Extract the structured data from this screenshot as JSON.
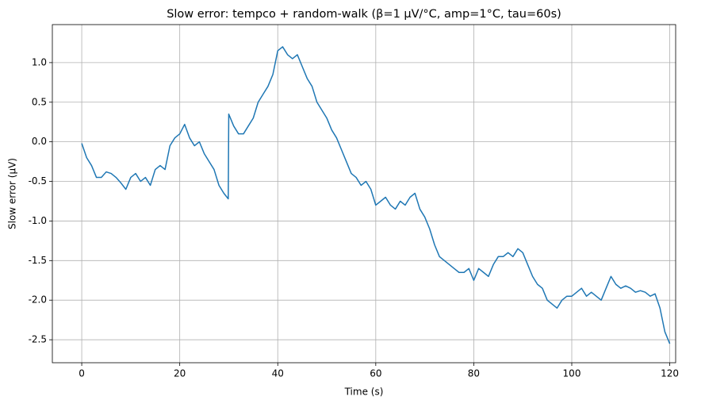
{
  "chart_data": {
    "type": "line",
    "title": "Slow error: tempco + random-walk (β=1 µV/°C, amp=1°C, tau=60s)",
    "x_label": "Time (s)",
    "y_label": "Slow error (µV)",
    "x": [
      0,
      1,
      2,
      3,
      4,
      5,
      6,
      7,
      8,
      9,
      10,
      11,
      12,
      13,
      14,
      15,
      16,
      17,
      18,
      19,
      20,
      21,
      22,
      23,
      24,
      25,
      26,
      27,
      28,
      29,
      29.9,
      30,
      31,
      32,
      33,
      34,
      35,
      36,
      37,
      38,
      39,
      40,
      41,
      42,
      43,
      44,
      45,
      46,
      47,
      48,
      49,
      50,
      51,
      52,
      53,
      54,
      55,
      56,
      57,
      58,
      59,
      60,
      61,
      62,
      63,
      64,
      65,
      66,
      67,
      68,
      69,
      70,
      71,
      72,
      73,
      74,
      75,
      76,
      77,
      78,
      79,
      80,
      81,
      82,
      83,
      84,
      85,
      86,
      87,
      88,
      89,
      90,
      91,
      92,
      93,
      94,
      95,
      96,
      97,
      98,
      99,
      100,
      101,
      102,
      103,
      104,
      105,
      106,
      107,
      108,
      109,
      110,
      111,
      112,
      113,
      114,
      115,
      116,
      117,
      118,
      119,
      120
    ],
    "series": [
      {
        "name": "Slow error",
        "color": "#1f77b4",
        "values": [
          -0.02,
          -0.2,
          -0.3,
          -0.45,
          -0.45,
          -0.38,
          -0.4,
          -0.45,
          -0.52,
          -0.6,
          -0.45,
          -0.4,
          -0.5,
          -0.45,
          -0.55,
          -0.35,
          -0.3,
          -0.35,
          -0.05,
          0.05,
          0.1,
          0.22,
          0.05,
          -0.05,
          0.0,
          -0.15,
          -0.25,
          -0.35,
          -0.55,
          -0.65,
          -0.72,
          0.35,
          0.2,
          0.1,
          0.1,
          0.2,
          0.3,
          0.5,
          0.6,
          0.7,
          0.85,
          1.15,
          1.2,
          1.1,
          1.05,
          1.1,
          0.95,
          0.8,
          0.7,
          0.5,
          0.4,
          0.3,
          0.15,
          0.05,
          -0.1,
          -0.25,
          -0.4,
          -0.45,
          -0.55,
          -0.5,
          -0.6,
          -0.8,
          -0.75,
          -0.7,
          -0.8,
          -0.85,
          -0.75,
          -0.8,
          -0.7,
          -0.65,
          -0.85,
          -0.95,
          -1.1,
          -1.3,
          -1.45,
          -1.5,
          -1.55,
          -1.6,
          -1.65,
          -1.65,
          -1.6,
          -1.75,
          -1.6,
          -1.65,
          -1.7,
          -1.55,
          -1.45,
          -1.45,
          -1.4,
          -1.45,
          -1.35,
          -1.4,
          -1.55,
          -1.7,
          -1.8,
          -1.85,
          -2.0,
          -2.05,
          -2.1,
          -2.0,
          -1.95,
          -1.95,
          -1.9,
          -1.85,
          -1.95,
          -1.9,
          -1.95,
          -2.0,
          -1.85,
          -1.7,
          -1.8,
          -1.85,
          -1.82,
          -1.85,
          -1.9,
          -1.88,
          -1.9,
          -1.95,
          -1.92,
          -2.1,
          -2.4,
          -2.55
        ]
      }
    ],
    "xlim": [
      -6,
      121.2
    ],
    "ylim": [
      -2.79,
      1.48
    ],
    "xticks": [
      0,
      20,
      40,
      60,
      80,
      100,
      120
    ],
    "yticks": [
      {
        "value": -2.5,
        "label": "-2.5"
      },
      {
        "value": -2,
        "label": "-2.0"
      },
      {
        "value": -1.5,
        "label": "-1.5"
      },
      {
        "value": -1,
        "label": "-1.0"
      },
      {
        "value": -0.5,
        "label": "-0.5"
      },
      {
        "value": 0,
        "label": "0.0"
      },
      {
        "value": 0.5,
        "label": "0.5"
      },
      {
        "value": 1,
        "label": "1.0"
      }
    ],
    "grid": true
  }
}
